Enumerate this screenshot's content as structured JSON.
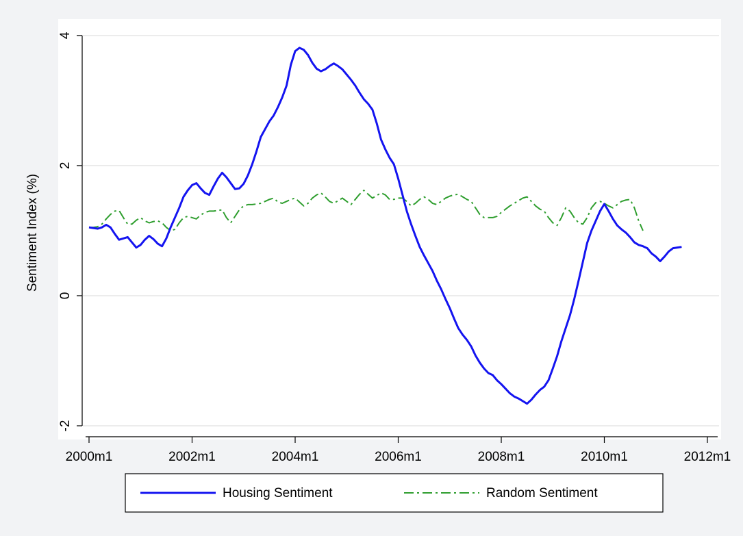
{
  "chart_data": {
    "type": "line",
    "y_label": "Sentiment Index (%)",
    "x": [
      "2000m1",
      "2000m2",
      "2000m3",
      "2000m4",
      "2000m5",
      "2000m6",
      "2000m7",
      "2000m8",
      "2000m9",
      "2000m10",
      "2000m11",
      "2000m12",
      "2001m1",
      "2001m2",
      "2001m3",
      "2001m4",
      "2001m5",
      "2001m6",
      "2001m7",
      "2001m8",
      "2001m9",
      "2001m10",
      "2001m11",
      "2001m12",
      "2002m1",
      "2002m2",
      "2002m3",
      "2002m4",
      "2002m5",
      "2002m6",
      "2002m7",
      "2002m8",
      "2002m9",
      "2002m10",
      "2002m11",
      "2002m12",
      "2003m1",
      "2003m2",
      "2003m3",
      "2003m4",
      "2003m5",
      "2003m6",
      "2003m7",
      "2003m8",
      "2003m9",
      "2003m10",
      "2003m11",
      "2003m12",
      "2004m1",
      "2004m2",
      "2004m3",
      "2004m4",
      "2004m5",
      "2004m6",
      "2004m7",
      "2004m8",
      "2004m9",
      "2004m10",
      "2004m11",
      "2004m12",
      "2005m1",
      "2005m2",
      "2005m3",
      "2005m4",
      "2005m5",
      "2005m6",
      "2005m7",
      "2005m8",
      "2005m9",
      "2005m10",
      "2005m11",
      "2005m12",
      "2006m1",
      "2006m2",
      "2006m3",
      "2006m4",
      "2006m5",
      "2006m6",
      "2006m7",
      "2006m8",
      "2006m9",
      "2006m10",
      "2006m11",
      "2006m12",
      "2007m1",
      "2007m2",
      "2007m3",
      "2007m4",
      "2007m5",
      "2007m6",
      "2007m7",
      "2007m8",
      "2007m9",
      "2007m10",
      "2007m11",
      "2007m12",
      "2008m1",
      "2008m2",
      "2008m3",
      "2008m4",
      "2008m5",
      "2008m6",
      "2008m7",
      "2008m8",
      "2008m9",
      "2008m10",
      "2008m11",
      "2008m12",
      "2009m1",
      "2009m2",
      "2009m3",
      "2009m4",
      "2009m5",
      "2009m6",
      "2009m7",
      "2009m8",
      "2009m9",
      "2009m10",
      "2009m11",
      "2009m12",
      "2010m1",
      "2010m2",
      "2010m3",
      "2010m4",
      "2010m5",
      "2010m6",
      "2010m7",
      "2010m8",
      "2010m9",
      "2010m10",
      "2010m11",
      "2010m12",
      "2011m1",
      "2011m2",
      "2011m3",
      "2011m4",
      "2011m5",
      "2011m6",
      "2011m7"
    ],
    "series": [
      {
        "name": "Housing Sentiment",
        "color": "#1414f0",
        "dash": "none",
        "values": [
          1.05,
          1.04,
          1.03,
          1.05,
          1.09,
          1.05,
          0.95,
          0.86,
          0.88,
          0.9,
          0.82,
          0.74,
          0.78,
          0.86,
          0.92,
          0.87,
          0.8,
          0.76,
          0.88,
          1.05,
          1.2,
          1.35,
          1.52,
          1.62,
          1.7,
          1.73,
          1.65,
          1.58,
          1.55,
          1.68,
          1.8,
          1.89,
          1.82,
          1.73,
          1.64,
          1.65,
          1.72,
          1.85,
          2.02,
          2.22,
          2.44,
          2.56,
          2.68,
          2.77,
          2.9,
          3.05,
          3.23,
          3.55,
          3.76,
          3.81,
          3.78,
          3.7,
          3.58,
          3.49,
          3.45,
          3.48,
          3.53,
          3.57,
          3.53,
          3.48,
          3.4,
          3.32,
          3.23,
          3.12,
          3.02,
          2.95,
          2.86,
          2.65,
          2.4,
          2.25,
          2.12,
          2.02,
          1.8,
          1.55,
          1.3,
          1.1,
          0.92,
          0.75,
          0.62,
          0.5,
          0.38,
          0.23,
          0.1,
          -0.05,
          -0.19,
          -0.35,
          -0.5,
          -0.6,
          -0.68,
          -0.78,
          -0.92,
          -1.03,
          -1.12,
          -1.19,
          -1.22,
          -1.3,
          -1.36,
          -1.43,
          -1.5,
          -1.55,
          -1.58,
          -1.62,
          -1.66,
          -1.6,
          -1.52,
          -1.45,
          -1.4,
          -1.3,
          -1.12,
          -0.93,
          -0.7,
          -0.5,
          -0.3,
          -0.05,
          0.23,
          0.52,
          0.81,
          1.0,
          1.15,
          1.3,
          1.41,
          1.3,
          1.18,
          1.08,
          1.02,
          0.97,
          0.9,
          0.82,
          0.78,
          0.76,
          0.73,
          0.65,
          0.6,
          0.53,
          0.6,
          0.68,
          0.73,
          0.74,
          0.75
        ]
      },
      {
        "name": "Random Sentiment",
        "color": "#2e9e2e",
        "dash": "dashdot",
        "values": [
          1.05,
          1.05,
          1.06,
          1.1,
          1.18,
          1.25,
          1.3,
          1.31,
          1.2,
          1.1,
          1.1,
          1.16,
          1.2,
          1.15,
          1.12,
          1.14,
          1.15,
          1.12,
          1.05,
          1.0,
          1.02,
          1.12,
          1.2,
          1.22,
          1.2,
          1.18,
          1.24,
          1.28,
          1.3,
          1.3,
          1.31,
          1.32,
          1.2,
          1.12,
          1.22,
          1.32,
          1.38,
          1.4,
          1.4,
          1.41,
          1.42,
          1.45,
          1.48,
          1.5,
          1.44,
          1.42,
          1.45,
          1.48,
          1.5,
          1.44,
          1.38,
          1.42,
          1.5,
          1.55,
          1.58,
          1.52,
          1.45,
          1.42,
          1.46,
          1.5,
          1.45,
          1.4,
          1.48,
          1.56,
          1.62,
          1.56,
          1.5,
          1.54,
          1.58,
          1.55,
          1.48,
          1.48,
          1.5,
          1.5,
          1.45,
          1.38,
          1.42,
          1.48,
          1.52,
          1.48,
          1.42,
          1.4,
          1.45,
          1.5,
          1.53,
          1.55,
          1.56,
          1.52,
          1.48,
          1.45,
          1.35,
          1.25,
          1.2,
          1.2,
          1.2,
          1.22,
          1.28,
          1.33,
          1.38,
          1.42,
          1.46,
          1.5,
          1.52,
          1.45,
          1.38,
          1.33,
          1.3,
          1.2,
          1.12,
          1.08,
          1.2,
          1.35,
          1.3,
          1.2,
          1.12,
          1.1,
          1.2,
          1.35,
          1.43,
          1.45,
          1.42,
          1.38,
          1.35,
          1.4,
          1.45,
          1.47,
          1.48,
          1.35,
          1.15,
          1.0,
          null,
          null,
          null,
          null,
          null,
          null,
          null,
          null,
          null
        ]
      }
    ],
    "xlim": [
      "2000m1",
      "2012m1"
    ],
    "xticks": [
      "2000m1",
      "2002m1",
      "2004m1",
      "2006m1",
      "2008m1",
      "2010m1",
      "2012m1"
    ],
    "ylim": [
      -2.2,
      4.23
    ],
    "yticks": [
      -2,
      0,
      2,
      4
    ],
    "grid": true,
    "legend": "bottom"
  }
}
